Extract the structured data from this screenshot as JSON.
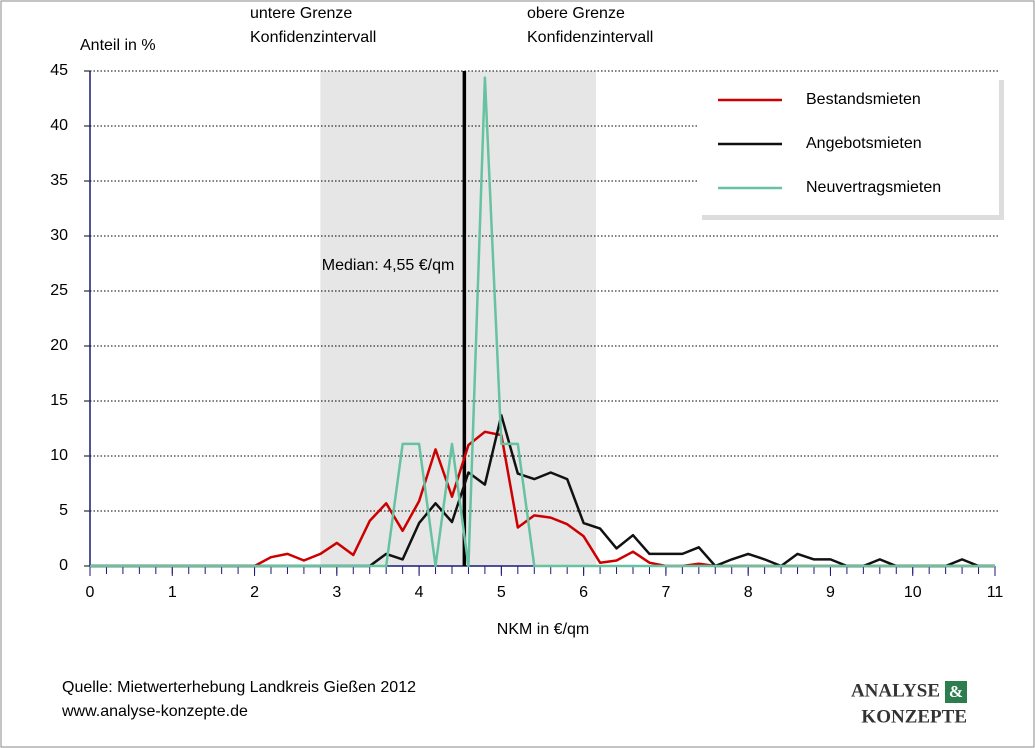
{
  "chart_data": {
    "type": "line",
    "y_label": "Anteil in %",
    "x_label": "NKM in €/qm",
    "annotations": [
      "untere Grenze",
      "Konfidenzintervall",
      "obere Grenze",
      "Konfidenzintervall"
    ],
    "median": 4.55,
    "median_label": "Median: 4,55 €/qm",
    "confidence_band": [
      2.8,
      6.15
    ],
    "band_color": "#e6e6e6",
    "source": [
      "Quelle: Mietwerterhebung Landkreis Gießen 2012",
      "www.analyse-konzepte.de"
    ],
    "logo": [
      "ANALYSE",
      "&",
      "KONZEPTE"
    ],
    "x": [
      0,
      0.2,
      0.4,
      0.6,
      0.8,
      1,
      1.2,
      1.4,
      1.6,
      1.8,
      2,
      2.2,
      2.4,
      2.6,
      2.8,
      3,
      3.2,
      3.4,
      3.6,
      3.8,
      4,
      4.2,
      4.4,
      4.6,
      4.8,
      5,
      5.2,
      5.4,
      5.6,
      5.8,
      6,
      6.2,
      6.4,
      6.6,
      6.8,
      7,
      7.2,
      7.4,
      7.6,
      7.8,
      8,
      8.2,
      8.4,
      8.6,
      8.8,
      9,
      9.2,
      9.4,
      9.6,
      9.8,
      10,
      10.2,
      10.4,
      10.6,
      10.8,
      11
    ],
    "series": [
      {
        "name": "Bestandsmieten",
        "color": "#cc0000",
        "values": [
          0,
          0,
          0,
          0,
          0,
          0,
          0,
          0,
          0,
          0,
          0,
          0.8,
          1.1,
          0.5,
          1.1,
          2.1,
          1.0,
          4.1,
          5.7,
          3.2,
          5.9,
          10.6,
          6.3,
          11.0,
          12.2,
          11.9,
          3.5,
          4.6,
          4.4,
          3.8,
          2.7,
          0.3,
          0.5,
          1.3,
          0.3,
          0,
          0,
          0.2,
          0,
          0,
          0,
          0,
          0,
          0,
          0,
          0,
          0,
          0,
          0,
          0,
          0,
          0,
          0,
          0,
          0,
          0
        ]
      },
      {
        "name": "Angebotsmieten",
        "color": "#111111",
        "values": [
          0,
          0,
          0,
          0,
          0,
          0,
          0,
          0,
          0,
          0,
          0,
          0,
          0,
          0,
          0,
          0,
          0,
          0,
          1.1,
          0.6,
          3.9,
          5.7,
          4.0,
          8.5,
          7.4,
          13.7,
          8.4,
          7.9,
          8.5,
          7.9,
          3.9,
          3.4,
          1.6,
          2.8,
          1.1,
          1.1,
          1.1,
          1.7,
          0,
          0.6,
          1.1,
          0.6,
          0,
          1.1,
          0.6,
          0.6,
          0,
          0,
          0.6,
          0,
          0,
          0,
          0,
          0.6,
          0,
          0
        ]
      },
      {
        "name": "Neuvertragsmieten",
        "color": "#66c2a0",
        "values": [
          0,
          0,
          0,
          0,
          0,
          0,
          0,
          0,
          0,
          0,
          0,
          0,
          0,
          0,
          0,
          0,
          0,
          0,
          0,
          11.1,
          11.1,
          0,
          11.1,
          0,
          44.4,
          11.1,
          11.1,
          0,
          0,
          0,
          0,
          0,
          0,
          0,
          0,
          0,
          0,
          0,
          0,
          0,
          0,
          0,
          0,
          0,
          0,
          0,
          0,
          0,
          0,
          0,
          0,
          0,
          0,
          0,
          0,
          0
        ]
      }
    ],
    "xlim": [
      0,
      11
    ],
    "xticks": [
      0,
      1,
      2,
      3,
      4,
      5,
      6,
      7,
      8,
      9,
      10,
      11
    ],
    "ylim": [
      0,
      45
    ],
    "yticks": [
      0,
      5,
      10,
      15,
      20,
      25,
      30,
      35,
      40,
      45
    ],
    "grid": true,
    "legend": "upper right"
  }
}
